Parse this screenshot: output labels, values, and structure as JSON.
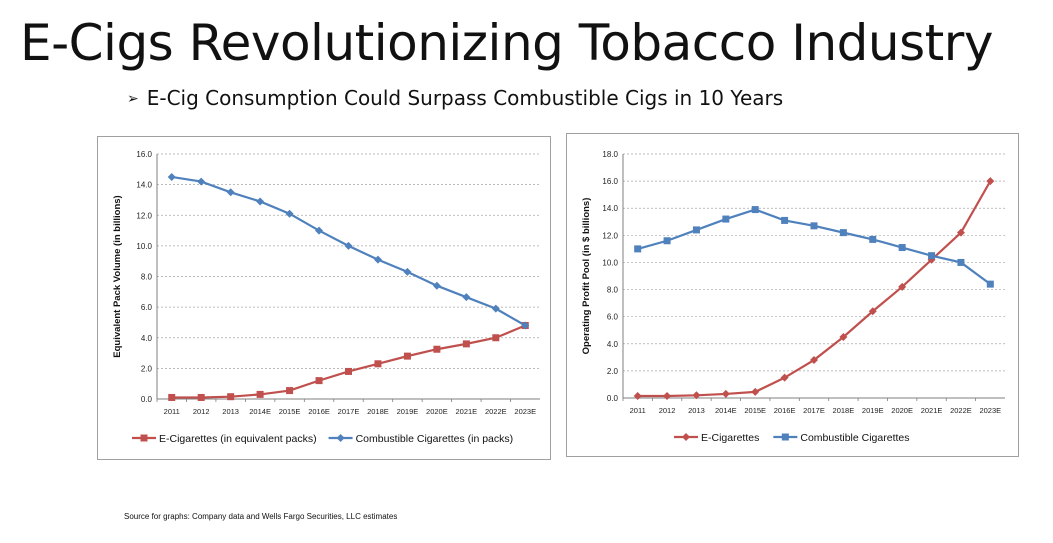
{
  "slide": {
    "title": "E-Cigs Revolutionizing Tobacco Industry",
    "subtitle_bullet": "➢",
    "subtitle": "E-Cig Consumption Could Surpass Combustible Cigs in 10 Years",
    "source": "Source for graphs: Company data and Wells Fargo Securities, LLC estimates"
  },
  "chart_data": [
    {
      "type": "line",
      "categories": [
        "2011",
        "2012",
        "2013",
        "2014E",
        "2015E",
        "2016E",
        "2017E",
        "2018E",
        "2019E",
        "2020E",
        "2021E",
        "2022E",
        "2023E"
      ],
      "ylabel": "Equivalent Pack Volume (in billions)",
      "ylim": [
        0,
        16
      ],
      "yticks": [
        "0.0",
        "2.0",
        "4.0",
        "6.0",
        "8.0",
        "10.0",
        "12.0",
        "14.0",
        "16.0"
      ],
      "grid": true,
      "legend_position": "bottom",
      "series": [
        {
          "name": "E-Cigarettes (in equivalent packs)",
          "color": "#c0504d",
          "marker": "square",
          "values": [
            0.1,
            0.1,
            0.15,
            0.3,
            0.55,
            1.2,
            1.8,
            2.3,
            2.8,
            3.25,
            3.6,
            4.0,
            4.8
          ]
        },
        {
          "name": "Combustible Cigarettes (in packs)",
          "color": "#4f81bd",
          "marker": "diamond",
          "values": [
            14.5,
            14.2,
            13.5,
            12.9,
            12.1,
            11.0,
            10.0,
            9.1,
            8.3,
            7.4,
            6.65,
            5.9,
            4.8
          ]
        }
      ]
    },
    {
      "type": "line",
      "categories": [
        "2011",
        "2012",
        "2013",
        "2014E",
        "2015E",
        "2016E",
        "2017E",
        "2018E",
        "2019E",
        "2020E",
        "2021E",
        "2022E",
        "2023E"
      ],
      "ylabel": "Operating Profit Pool (in $ billions)",
      "ylim": [
        0,
        18
      ],
      "yticks": [
        "0.0",
        "2.0",
        "4.0",
        "6.0",
        "8.0",
        "10.0",
        "12.0",
        "14.0",
        "16.0",
        "18.0"
      ],
      "grid": true,
      "legend_position": "bottom",
      "series": [
        {
          "name": "E-Cigarettes",
          "color": "#c0504d",
          "marker": "diamond",
          "values": [
            0.15,
            0.15,
            0.2,
            0.3,
            0.45,
            1.5,
            2.8,
            4.5,
            6.4,
            8.2,
            10.2,
            12.2,
            16.0
          ]
        },
        {
          "name": "Combustible Cigarettes",
          "color": "#4f81bd",
          "marker": "square",
          "values": [
            11.0,
            11.6,
            12.4,
            13.2,
            13.9,
            13.1,
            12.7,
            12.2,
            11.7,
            11.1,
            10.5,
            10.0,
            8.4
          ]
        }
      ]
    }
  ]
}
